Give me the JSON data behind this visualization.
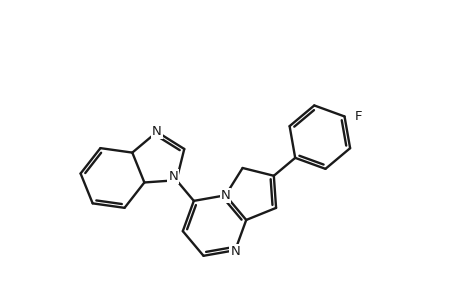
{
  "bg": "#ffffff",
  "lc": "#1a1a1a",
  "lw": 1.7,
  "fs": 9.5,
  "fw": 4.6,
  "fh": 3.0,
  "dpi": 100,
  "xlim": [
    -2.3,
    2.7
  ],
  "ylim": [
    -1.7,
    3.1
  ]
}
